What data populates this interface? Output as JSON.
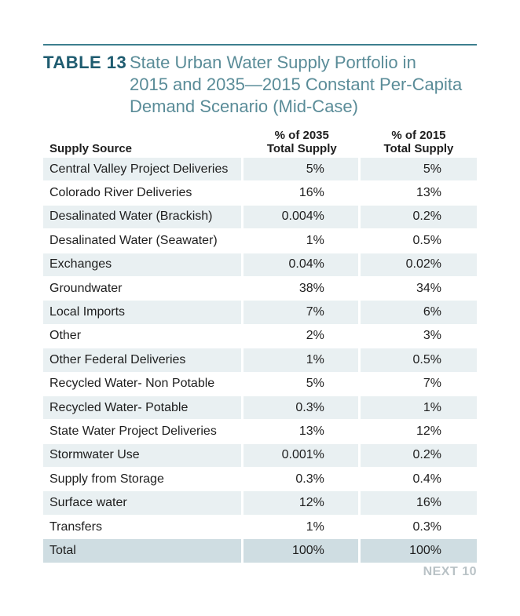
{
  "table": {
    "label": "TABLE 13",
    "title_lines": [
      "State Urban Water Supply Portfolio in",
      "2015 and 2035—2015 Constant Per-Capita",
      "Demand Scenario (Mid-Case)"
    ],
    "headers": {
      "source": "Supply Source",
      "col_2035_line1": "% of 2035",
      "col_2035_line2": "Total Supply",
      "col_2015_line1": "% of 2015",
      "col_2015_line2": "Total Supply"
    },
    "rows": [
      {
        "source": "Central Valley Project Deliveries",
        "pct_2035": "5%",
        "pct_2015": "5%"
      },
      {
        "source": "Colorado River Deliveries",
        "pct_2035": "16%",
        "pct_2015": "13%"
      },
      {
        "source": "Desalinated Water (Brackish)",
        "pct_2035": "0.004%",
        "pct_2015": "0.2%"
      },
      {
        "source": "Desalinated Water (Seawater)",
        "pct_2035": "1%",
        "pct_2015": "0.5%"
      },
      {
        "source": "Exchanges",
        "pct_2035": "0.04%",
        "pct_2015": "0.02%"
      },
      {
        "source": "Groundwater",
        "pct_2035": "38%",
        "pct_2015": "34%"
      },
      {
        "source": "Local Imports",
        "pct_2035": "7%",
        "pct_2015": "6%"
      },
      {
        "source": "Other",
        "pct_2035": "2%",
        "pct_2015": "3%"
      },
      {
        "source": "Other Federal Deliveries",
        "pct_2035": "1%",
        "pct_2015": "0.5%"
      },
      {
        "source": "Recycled Water- Non Potable",
        "pct_2035": "5%",
        "pct_2015": "7%"
      },
      {
        "source": "Recycled Water- Potable",
        "pct_2035": "0.3%",
        "pct_2015": "1%"
      },
      {
        "source": "State Water Project Deliveries",
        "pct_2035": "13%",
        "pct_2015": "12%"
      },
      {
        "source": "Stormwater Use",
        "pct_2035": "0.001%",
        "pct_2015": "0.2%"
      },
      {
        "source": "Supply from Storage",
        "pct_2035": "0.3%",
        "pct_2015": "0.4%"
      },
      {
        "source": "Surface water",
        "pct_2035": "12%",
        "pct_2015": "16%"
      },
      {
        "source": "Transfers",
        "pct_2035": "1%",
        "pct_2015": "0.3%"
      }
    ],
    "total": {
      "source": "Total",
      "pct_2035": "100%",
      "pct_2015": "100%"
    }
  },
  "footer": {
    "label": "NEXT 10"
  },
  "colors": {
    "accent": "#1f5c70",
    "title_text": "#5a8c98",
    "rule": "#3d7f8e",
    "row_shade": "#e9f0f2",
    "total_shade": "#cfdde2",
    "footer_text": "#b9c2c6"
  }
}
